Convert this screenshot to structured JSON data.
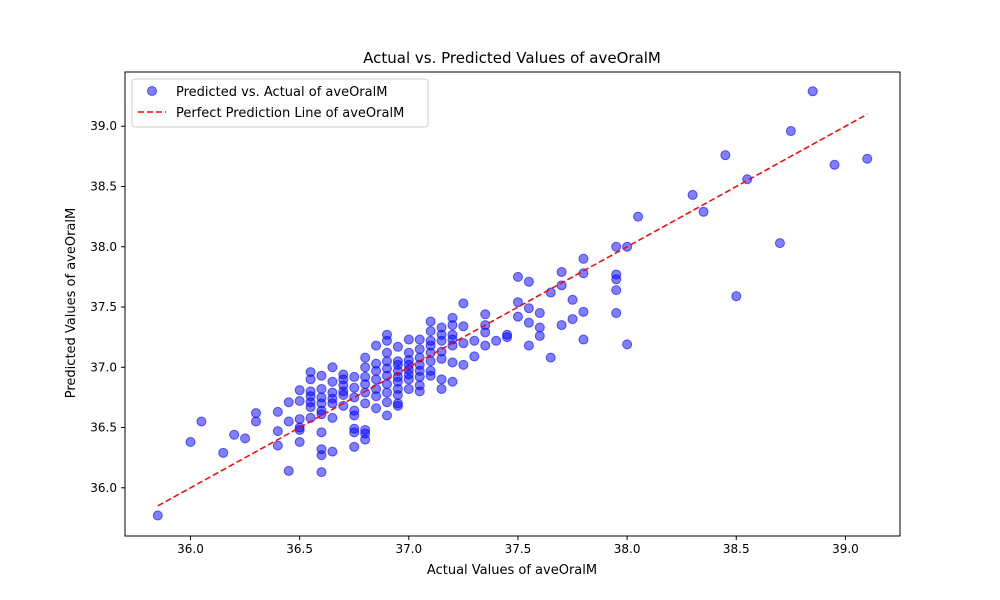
{
  "chart_data": {
    "type": "scatter",
    "title": "Actual vs. Predicted Values of aveOralM",
    "xlabel": "Actual Values of aveOralM",
    "ylabel": "Predicted Values of aveOralM",
    "xlim": [
      35.7,
      39.25
    ],
    "ylim": [
      35.6,
      39.45
    ],
    "xticks": [
      "36.0",
      "36.5",
      "37.0",
      "37.5",
      "38.0",
      "38.5",
      "39.0"
    ],
    "yticks": [
      "36.0",
      "36.5",
      "37.0",
      "37.5",
      "38.0",
      "38.5",
      "39.0"
    ],
    "grid": false,
    "legend_position": "top-left",
    "series": [
      {
        "name": "Predicted vs. Actual of aveOralM",
        "color": "#0000ff",
        "marker": "circle",
        "points": [
          [
            35.85,
            35.77
          ],
          [
            36.0,
            36.38
          ],
          [
            36.05,
            36.55
          ],
          [
            36.15,
            36.29
          ],
          [
            36.2,
            36.44
          ],
          [
            36.25,
            36.41
          ],
          [
            36.3,
            36.62
          ],
          [
            36.3,
            36.55
          ],
          [
            36.4,
            36.63
          ],
          [
            36.4,
            36.47
          ],
          [
            36.4,
            36.35
          ],
          [
            36.45,
            36.71
          ],
          [
            36.45,
            36.55
          ],
          [
            36.45,
            36.14
          ],
          [
            36.5,
            36.81
          ],
          [
            36.5,
            36.72
          ],
          [
            36.5,
            36.57
          ],
          [
            36.5,
            36.5
          ],
          [
            36.5,
            36.48
          ],
          [
            36.5,
            36.38
          ],
          [
            36.55,
            36.96
          ],
          [
            36.55,
            36.9
          ],
          [
            36.55,
            36.8
          ],
          [
            36.55,
            36.76
          ],
          [
            36.55,
            36.71
          ],
          [
            36.55,
            36.67
          ],
          [
            36.55,
            36.58
          ],
          [
            36.6,
            36.93
          ],
          [
            36.6,
            36.82
          ],
          [
            36.6,
            36.75
          ],
          [
            36.6,
            36.7
          ],
          [
            36.6,
            36.64
          ],
          [
            36.6,
            36.61
          ],
          [
            36.6,
            36.46
          ],
          [
            36.6,
            36.32
          ],
          [
            36.6,
            36.27
          ],
          [
            36.6,
            36.13
          ],
          [
            36.65,
            37.0
          ],
          [
            36.65,
            36.88
          ],
          [
            36.65,
            36.79
          ],
          [
            36.65,
            36.74
          ],
          [
            36.65,
            36.7
          ],
          [
            36.65,
            36.58
          ],
          [
            36.65,
            36.3
          ],
          [
            36.7,
            36.94
          ],
          [
            36.7,
            36.9
          ],
          [
            36.7,
            36.85
          ],
          [
            36.7,
            36.8
          ],
          [
            36.7,
            36.77
          ],
          [
            36.7,
            36.68
          ],
          [
            36.75,
            36.92
          ],
          [
            36.75,
            36.83
          ],
          [
            36.75,
            36.75
          ],
          [
            36.75,
            36.64
          ],
          [
            36.75,
            36.6
          ],
          [
            36.75,
            36.49
          ],
          [
            36.75,
            36.46
          ],
          [
            36.75,
            36.34
          ],
          [
            36.8,
            37.08
          ],
          [
            36.8,
            37.0
          ],
          [
            36.8,
            36.92
          ],
          [
            36.8,
            36.86
          ],
          [
            36.8,
            36.79
          ],
          [
            36.8,
            36.7
          ],
          [
            36.8,
            36.48
          ],
          [
            36.8,
            36.45
          ],
          [
            36.8,
            36.4
          ],
          [
            36.85,
            37.18
          ],
          [
            36.85,
            37.03
          ],
          [
            36.85,
            36.97
          ],
          [
            36.85,
            36.9
          ],
          [
            36.85,
            36.82
          ],
          [
            36.85,
            36.76
          ],
          [
            36.85,
            36.66
          ],
          [
            36.9,
            37.27
          ],
          [
            36.9,
            37.22
          ],
          [
            36.9,
            37.12
          ],
          [
            36.9,
            37.05
          ],
          [
            36.9,
            36.99
          ],
          [
            36.9,
            36.93
          ],
          [
            36.9,
            36.86
          ],
          [
            36.9,
            36.79
          ],
          [
            36.9,
            36.71
          ],
          [
            36.9,
            36.6
          ],
          [
            36.95,
            37.17
          ],
          [
            36.95,
            37.05
          ],
          [
            36.95,
            37.02
          ],
          [
            36.95,
            36.97
          ],
          [
            36.95,
            36.92
          ],
          [
            36.95,
            36.88
          ],
          [
            36.95,
            36.82
          ],
          [
            36.95,
            36.77
          ],
          [
            36.95,
            36.7
          ],
          [
            36.95,
            36.68
          ],
          [
            37.0,
            37.23
          ],
          [
            37.0,
            37.12
          ],
          [
            37.0,
            37.06
          ],
          [
            37.0,
            37.02
          ],
          [
            37.0,
            36.98
          ],
          [
            37.0,
            36.94
          ],
          [
            37.0,
            36.9
          ],
          [
            37.0,
            36.82
          ],
          [
            37.05,
            37.23
          ],
          [
            37.05,
            37.15
          ],
          [
            37.05,
            37.08
          ],
          [
            37.05,
            37.02
          ],
          [
            37.05,
            36.97
          ],
          [
            37.05,
            36.92
          ],
          [
            37.05,
            36.85
          ],
          [
            37.05,
            36.8
          ],
          [
            37.1,
            37.38
          ],
          [
            37.1,
            37.3
          ],
          [
            37.1,
            37.22
          ],
          [
            37.1,
            37.18
          ],
          [
            37.1,
            37.12
          ],
          [
            37.1,
            37.05
          ],
          [
            37.1,
            36.97
          ],
          [
            37.1,
            36.93
          ],
          [
            37.15,
            37.33
          ],
          [
            37.15,
            37.27
          ],
          [
            37.15,
            37.22
          ],
          [
            37.15,
            37.13
          ],
          [
            37.15,
            37.07
          ],
          [
            37.15,
            36.9
          ],
          [
            37.15,
            36.82
          ],
          [
            37.2,
            37.41
          ],
          [
            37.2,
            37.35
          ],
          [
            37.2,
            37.27
          ],
          [
            37.2,
            37.23
          ],
          [
            37.2,
            37.18
          ],
          [
            37.2,
            37.04
          ],
          [
            37.2,
            36.88
          ],
          [
            37.25,
            37.53
          ],
          [
            37.25,
            37.34
          ],
          [
            37.25,
            37.2
          ],
          [
            37.25,
            37.02
          ],
          [
            37.3,
            37.22
          ],
          [
            37.3,
            37.09
          ],
          [
            37.35,
            37.44
          ],
          [
            37.35,
            37.35
          ],
          [
            37.35,
            37.29
          ],
          [
            37.35,
            37.18
          ],
          [
            37.4,
            37.22
          ],
          [
            37.45,
            37.27
          ],
          [
            37.45,
            37.25
          ],
          [
            37.5,
            37.75
          ],
          [
            37.5,
            37.54
          ],
          [
            37.5,
            37.42
          ],
          [
            37.55,
            37.71
          ],
          [
            37.55,
            37.49
          ],
          [
            37.55,
            37.37
          ],
          [
            37.55,
            37.18
          ],
          [
            37.6,
            37.45
          ],
          [
            37.6,
            37.33
          ],
          [
            37.6,
            37.26
          ],
          [
            37.65,
            37.62
          ],
          [
            37.65,
            37.08
          ],
          [
            37.7,
            37.79
          ],
          [
            37.7,
            37.68
          ],
          [
            37.7,
            37.35
          ],
          [
            37.75,
            37.56
          ],
          [
            37.75,
            37.4
          ],
          [
            37.8,
            37.9
          ],
          [
            37.8,
            37.78
          ],
          [
            37.8,
            37.46
          ],
          [
            37.8,
            37.23
          ],
          [
            37.95,
            38.0
          ],
          [
            37.95,
            37.77
          ],
          [
            37.95,
            37.73
          ],
          [
            37.95,
            37.64
          ],
          [
            37.95,
            37.45
          ],
          [
            38.0,
            38.0
          ],
          [
            38.0,
            37.19
          ],
          [
            38.05,
            38.25
          ],
          [
            38.3,
            38.43
          ],
          [
            38.35,
            38.29
          ],
          [
            38.45,
            38.76
          ],
          [
            38.5,
            37.59
          ],
          [
            38.55,
            38.56
          ],
          [
            38.7,
            38.03
          ],
          [
            38.75,
            38.96
          ],
          [
            38.85,
            39.29
          ],
          [
            38.95,
            38.68
          ],
          [
            39.1,
            38.73
          ]
        ]
      },
      {
        "name": "Perfect Prediction Line of aveOralM",
        "color": "#ff0000",
        "line_style": "dashed",
        "points": [
          [
            35.85,
            35.85
          ],
          [
            39.1,
            39.1
          ]
        ]
      }
    ]
  }
}
